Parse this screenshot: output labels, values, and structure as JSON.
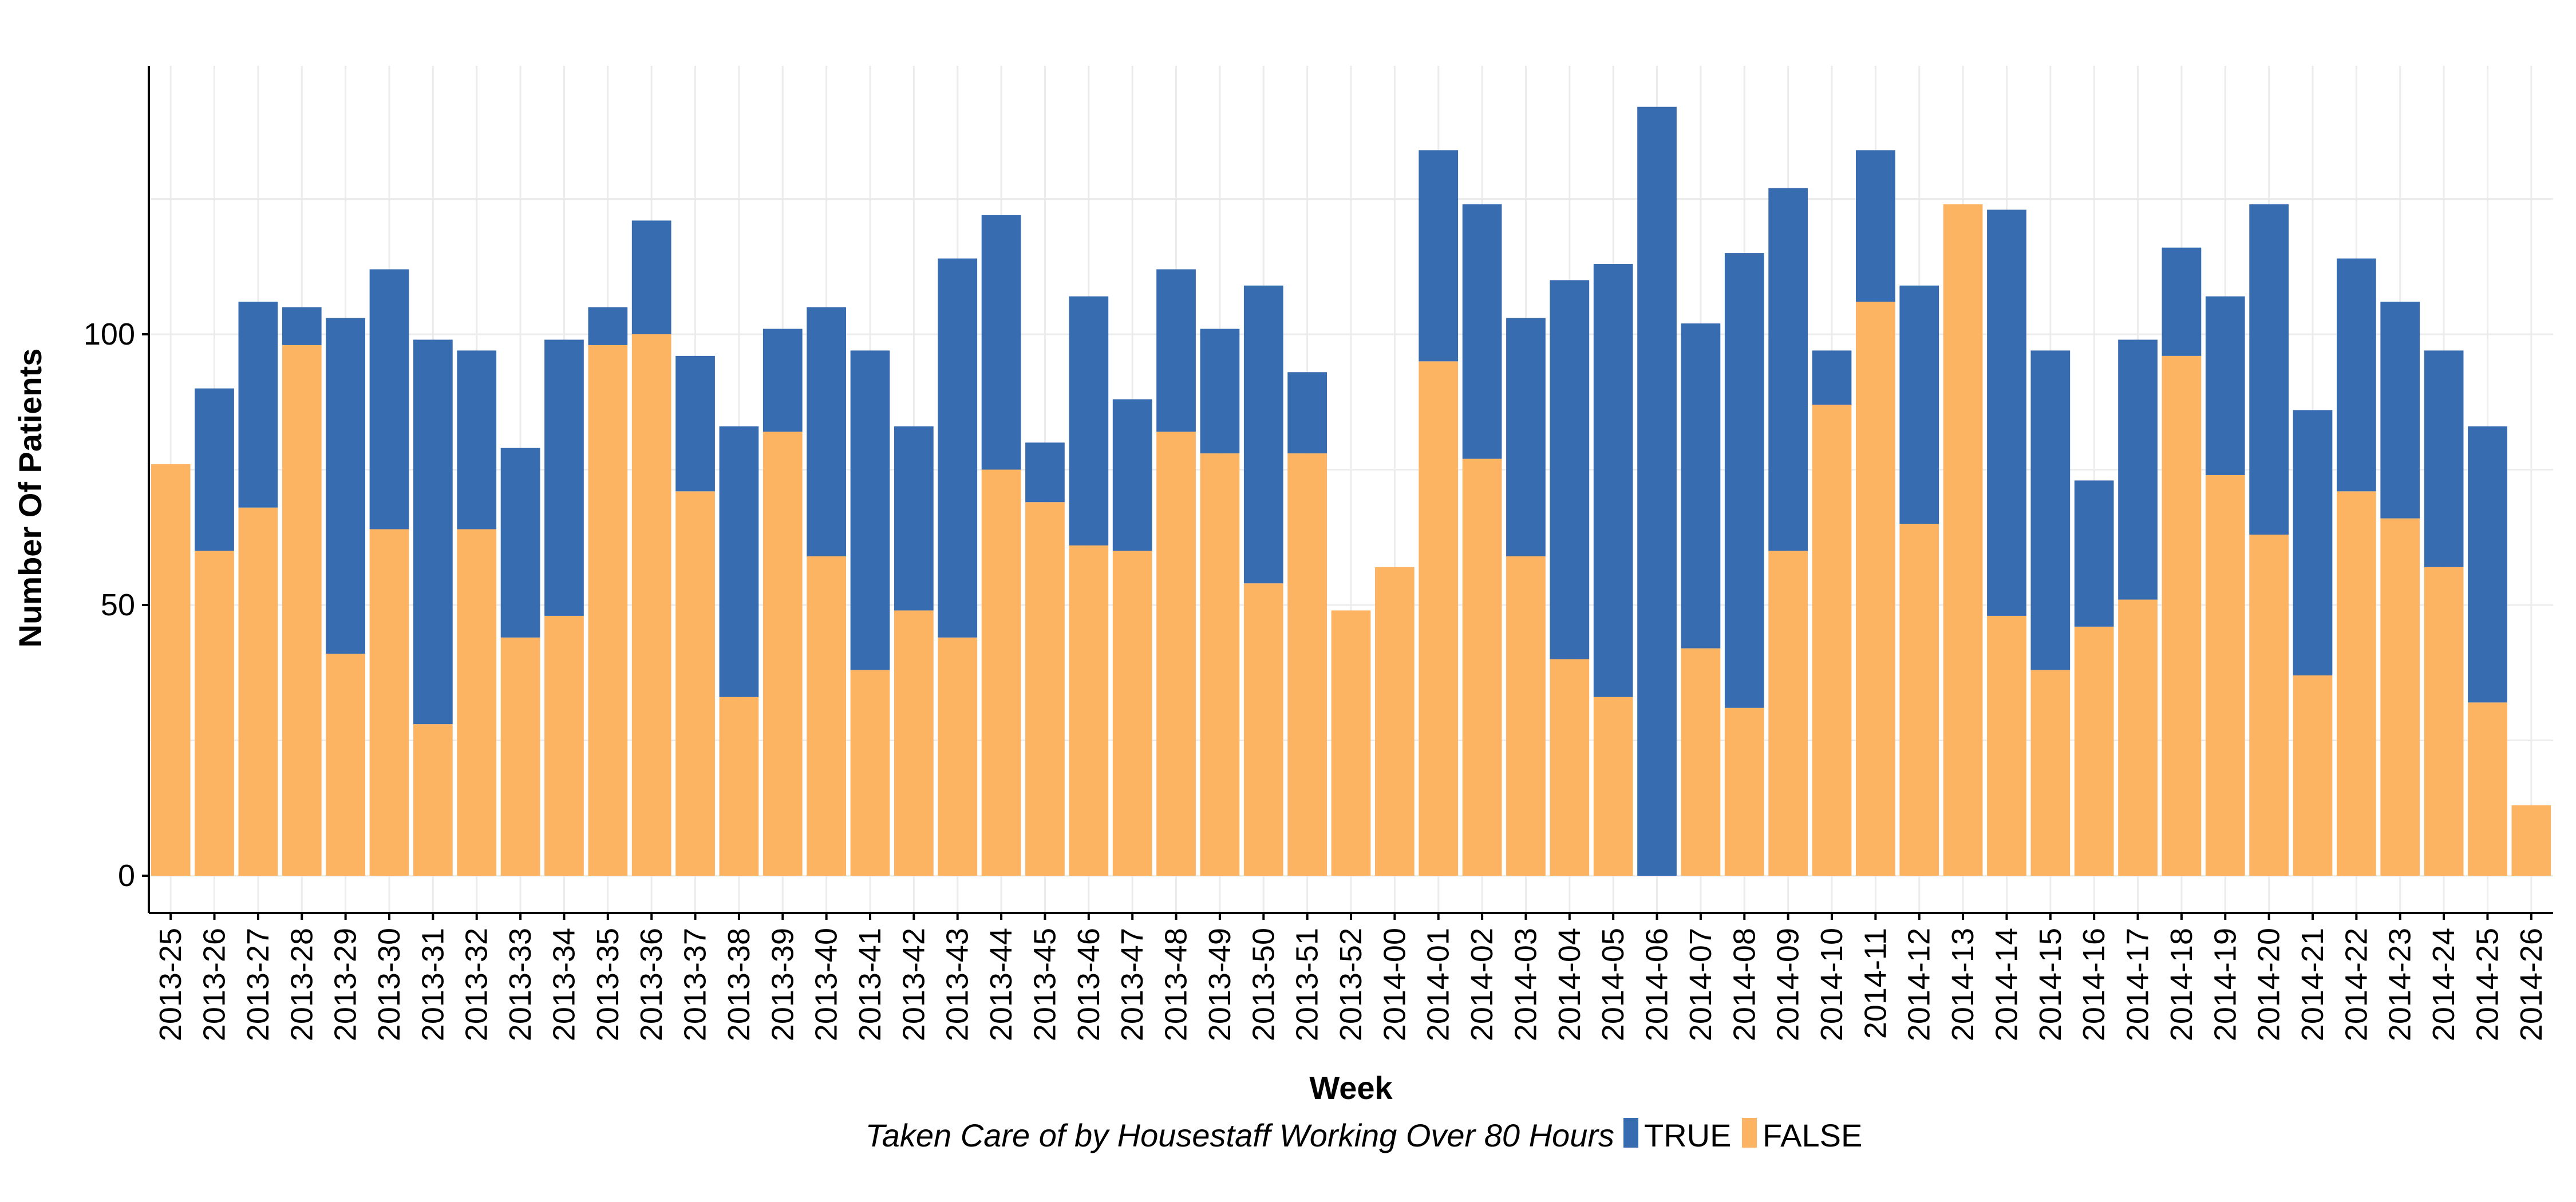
{
  "chart_data": {
    "type": "bar",
    "stacked": true,
    "xlabel": "Week",
    "ylabel": "Number Of Patients",
    "ylim": [
      0,
      143
    ],
    "yticks": [
      0,
      50,
      100
    ],
    "grid": true,
    "legend": {
      "position": "bottom",
      "title": "Taken Care of by Housestaff Working Over 80 Hours"
    },
    "categories": [
      "2013-25",
      "2013-26",
      "2013-27",
      "2013-28",
      "2013-29",
      "2013-30",
      "2013-31",
      "2013-32",
      "2013-33",
      "2013-34",
      "2013-35",
      "2013-36",
      "2013-37",
      "2013-38",
      "2013-39",
      "2013-40",
      "2013-41",
      "2013-42",
      "2013-43",
      "2013-44",
      "2013-45",
      "2013-46",
      "2013-47",
      "2013-48",
      "2013-49",
      "2013-50",
      "2013-51",
      "2013-52",
      "2014-00",
      "2014-01",
      "2014-02",
      "2014-03",
      "2014-04",
      "2014-05",
      "2014-06",
      "2014-07",
      "2014-08",
      "2014-09",
      "2014-10",
      "2014-11",
      "2014-12",
      "2014-13",
      "2014-14",
      "2014-15",
      "2014-16",
      "2014-17",
      "2014-18",
      "2014-19",
      "2014-20",
      "2014-21",
      "2014-22",
      "2014-23",
      "2014-24",
      "2014-25",
      "2014-26"
    ],
    "series": [
      {
        "name": "FALSE",
        "color": "#FDB462",
        "values": [
          76,
          60,
          68,
          98,
          41,
          64,
          28,
          64,
          44,
          48,
          98,
          100,
          71,
          33,
          82,
          59,
          38,
          49,
          44,
          75,
          69,
          61,
          60,
          82,
          78,
          54,
          78,
          49,
          57,
          95,
          77,
          59,
          40,
          33,
          0,
          42,
          31,
          60,
          87,
          106,
          65,
          124,
          48,
          38,
          46,
          51,
          96,
          74,
          63,
          37,
          71,
          66,
          57,
          32,
          13
        ]
      },
      {
        "name": "TRUE",
        "color": "#386CB0",
        "values": [
          0,
          30,
          38,
          7,
          62,
          48,
          71,
          33,
          35,
          51,
          7,
          21,
          25,
          50,
          19,
          46,
          59,
          34,
          70,
          47,
          11,
          46,
          28,
          30,
          23,
          55,
          15,
          0,
          0,
          39,
          47,
          44,
          70,
          80,
          142,
          60,
          84,
          67,
          10,
          28,
          44,
          0,
          75,
          59,
          27,
          48,
          20,
          33,
          61,
          49,
          43,
          40,
          40,
          51,
          0
        ]
      }
    ]
  }
}
